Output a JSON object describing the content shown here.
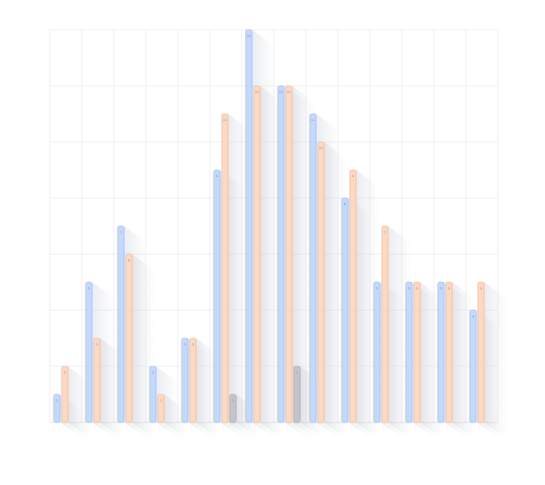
{
  "chart_data": {
    "type": "bar",
    "categories": [
      "",
      "",
      "",
      "",
      "",
      "",
      "",
      "",
      "",
      "",
      "",
      "",
      "",
      ""
    ],
    "series": [
      {
        "values": [
          1,
          5,
          7,
          2,
          3,
          9,
          14,
          12,
          11,
          8,
          5,
          5,
          5,
          4
        ],
        "labels": [
          "1",
          "5",
          "7",
          "2",
          "3",
          "9",
          "14",
          "12",
          "11",
          "8",
          "5",
          "5",
          "5",
          "4"
        ]
      },
      {
        "values": [
          2,
          3,
          6,
          1,
          3,
          11,
          12,
          12,
          10,
          9,
          7,
          5,
          5,
          5
        ],
        "labels": [
          "2",
          "3",
          "6",
          "1",
          "3",
          "11",
          "12",
          "12",
          "10",
          "9",
          "7",
          "5",
          "5",
          "5"
        ]
      },
      {
        "values": [
          0,
          0,
          0,
          0,
          0,
          1,
          0,
          2,
          0,
          0,
          0,
          0,
          0,
          0
        ],
        "labels": [
          "",
          "",
          "",
          "",
          "",
          "1",
          "",
          "2",
          "",
          "",
          "",
          "",
          "",
          ""
        ]
      }
    ],
    "ylim": [
      0,
      14
    ],
    "grid": true,
    "legend": "none",
    "colors": {
      "series": [
        "#c6d8fb",
        "#fcd9c3",
        "#c4c4cc"
      ],
      "series_stroke": [
        "#9bb9f3",
        "#f1b792",
        "#a7a7b1"
      ],
      "grid": "#eeeeee",
      "shadow": "#b8bec8"
    }
  }
}
